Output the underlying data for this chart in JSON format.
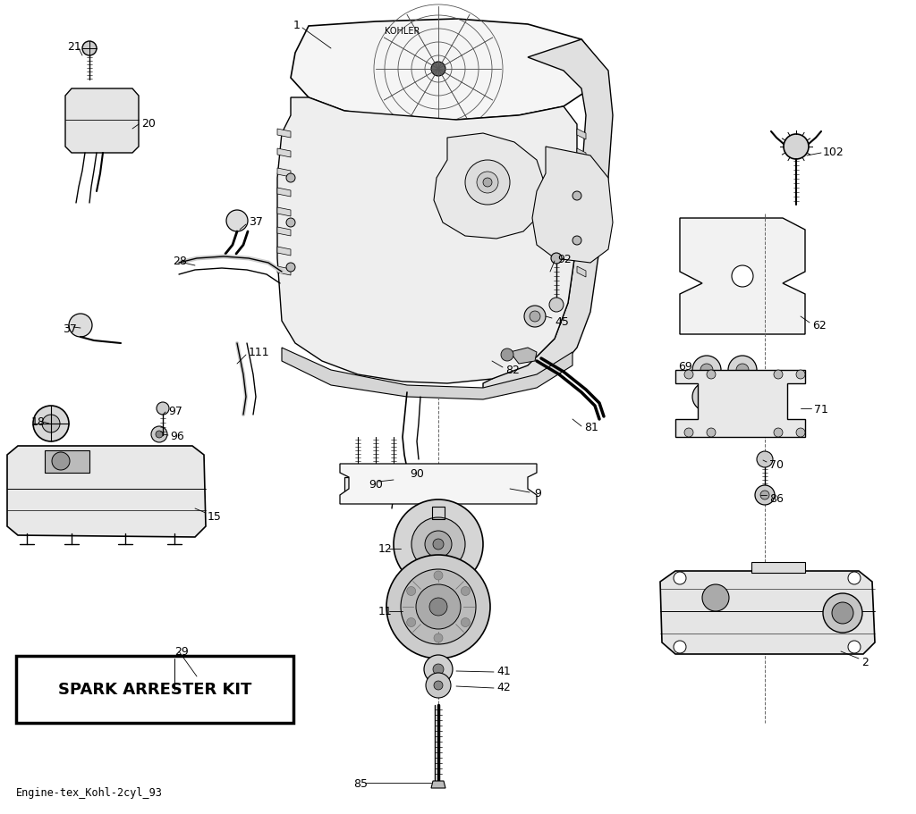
{
  "subtitle": "Engine-tex_Kohl-2cyl_93",
  "box_label": "SPARK ARRESTER KIT",
  "bg": "#ffffff",
  "lc": "#000000"
}
